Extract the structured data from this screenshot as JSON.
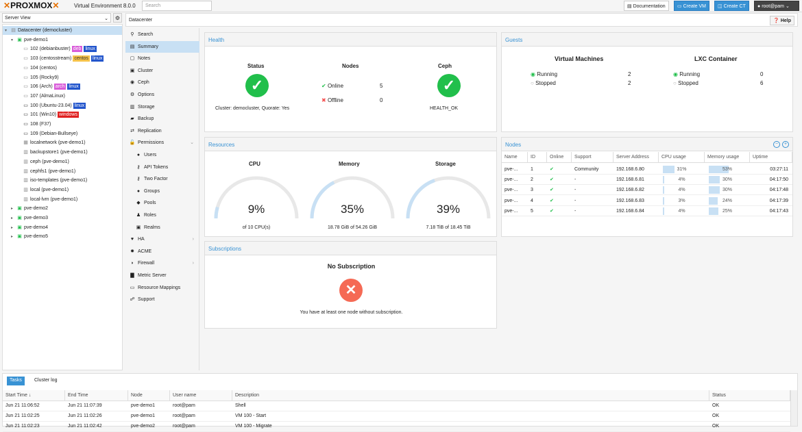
{
  "topbar": {
    "logo": "PROXMOX",
    "version": "Virtual Environment 8.0.0",
    "search_placeholder": "Search",
    "documentation": "Documentation",
    "create_vm": "Create VM",
    "create_ct": "Create CT",
    "user": "root@pam"
  },
  "server_view": "Server View",
  "tree": [
    {
      "label": "Datacenter (democluster)",
      "icon": "datacenter-icon",
      "indent": 0,
      "selected": true
    },
    {
      "label": "pve-demo1",
      "icon": "node-icon",
      "indent": 1,
      "exp": "▾"
    },
    {
      "label": "102 (debianbuster)",
      "icon": "vm-icon",
      "indent": 2,
      "tags": [
        {
          "t": "deb",
          "c": "#d95cd9"
        },
        {
          "t": "linux",
          "c": "#2255cc"
        }
      ]
    },
    {
      "label": "103 (centosstream)",
      "icon": "vm-icon",
      "indent": 2,
      "tags": [
        {
          "t": "centos",
          "c": "#f6c34a",
          "fg": "#333"
        },
        {
          "t": "linux",
          "c": "#2255cc"
        }
      ]
    },
    {
      "label": "104 (centos)",
      "icon": "vm-icon",
      "indent": 2
    },
    {
      "label": "105 (Rocky9)",
      "icon": "vm-icon",
      "indent": 2
    },
    {
      "label": "106 (Arch)",
      "icon": "vm-icon",
      "indent": 2,
      "tags": [
        {
          "t": "arch",
          "c": "#d95cd9"
        },
        {
          "t": "linux",
          "c": "#2255cc"
        }
      ]
    },
    {
      "label": "107 (AlmaLinux)",
      "icon": "vm-icon",
      "indent": 2
    },
    {
      "label": "100 (Ubuntu-23.04)",
      "icon": "monitor-icon",
      "indent": 2,
      "tags": [
        {
          "t": "linux",
          "c": "#2255cc"
        }
      ]
    },
    {
      "label": "101 (Win10)",
      "icon": "monitor-icon",
      "indent": 2,
      "tags": [
        {
          "t": "windows",
          "c": "#e02020"
        }
      ]
    },
    {
      "label": "108 (F37)",
      "icon": "monitor-icon",
      "indent": 2
    },
    {
      "label": "109 (Debian-Bullseye)",
      "icon": "monitor-icon",
      "indent": 2
    },
    {
      "label": "localnetwork (pve-demo1)",
      "icon": "network-icon",
      "indent": 2
    },
    {
      "label": "backupstore1 (pve-demo1)",
      "icon": "storage-icon",
      "indent": 2
    },
    {
      "label": "ceph (pve-demo1)",
      "icon": "storage-icon",
      "indent": 2
    },
    {
      "label": "cephfs1 (pve-demo1)",
      "icon": "storage-icon",
      "indent": 2
    },
    {
      "label": "iso-templates (pve-demo1)",
      "icon": "storage-icon",
      "indent": 2
    },
    {
      "label": "local (pve-demo1)",
      "icon": "storage-icon",
      "indent": 2
    },
    {
      "label": "local-lvm (pve-demo1)",
      "icon": "storage-icon",
      "indent": 2
    },
    {
      "label": "pve-demo2",
      "icon": "node-icon",
      "indent": 1,
      "exp": "▸"
    },
    {
      "label": "pve-demo3",
      "icon": "node-icon",
      "indent": 1,
      "exp": "▸"
    },
    {
      "label": "pve-demo4",
      "icon": "node-icon",
      "indent": 1,
      "exp": "▸"
    },
    {
      "label": "pve-demo5",
      "icon": "node-icon",
      "indent": 1,
      "exp": "▸"
    }
  ],
  "breadcrumb": "Datacenter",
  "help": "Help",
  "menu": [
    {
      "label": "Search",
      "icon": "search-icon",
      "g": "⚲"
    },
    {
      "label": "Summary",
      "icon": "summary-icon",
      "g": "▤",
      "selected": true
    },
    {
      "label": "Notes",
      "icon": "notes-icon",
      "g": "▢"
    },
    {
      "label": "Cluster",
      "icon": "cluster-icon",
      "g": "▣"
    },
    {
      "label": "Ceph",
      "icon": "ceph-icon",
      "g": "◉"
    },
    {
      "label": "Options",
      "icon": "gear-icon",
      "g": "⚙"
    },
    {
      "label": "Storage",
      "icon": "storage-icon",
      "g": "▥"
    },
    {
      "label": "Backup",
      "icon": "backup-icon",
      "g": "▰"
    },
    {
      "label": "Replication",
      "icon": "replication-icon",
      "g": "⇄"
    },
    {
      "label": "Permissions",
      "icon": "unlock-icon",
      "g": "🔓",
      "arrow": "⌄"
    },
    {
      "label": "Users",
      "icon": "user-icon",
      "g": "●",
      "sub": true
    },
    {
      "label": "API Tokens",
      "icon": "key-icon",
      "g": "⚷",
      "sub": true
    },
    {
      "label": "Two Factor",
      "icon": "key-icon",
      "g": "⚷",
      "sub": true
    },
    {
      "label": "Groups",
      "icon": "users-icon",
      "g": "●",
      "sub": true
    },
    {
      "label": "Pools",
      "icon": "tags-icon",
      "g": "◆",
      "sub": true
    },
    {
      "label": "Roles",
      "icon": "male-icon",
      "g": "♟",
      "sub": true
    },
    {
      "label": "Realms",
      "icon": "address-book-icon",
      "g": "▣",
      "sub": true
    },
    {
      "label": "HA",
      "icon": "heartbeat-icon",
      "g": "♥",
      "arrow": "›"
    },
    {
      "label": "ACME",
      "icon": "certificate-icon",
      "g": "✹"
    },
    {
      "label": "Firewall",
      "icon": "shield-icon",
      "g": "◗",
      "arrow": "›"
    },
    {
      "label": "Metric Server",
      "icon": "bar-chart-icon",
      "g": "▇"
    },
    {
      "label": "Resource Mappings",
      "icon": "folder-icon",
      "g": "▭"
    },
    {
      "label": "Support",
      "icon": "comments-icon",
      "g": "☍"
    }
  ],
  "health": {
    "title": "Health",
    "status_h": "Status",
    "nodes_h": "Nodes",
    "ceph_h": "Ceph",
    "online": "Online",
    "online_n": "5",
    "offline": "Offline",
    "offline_n": "0",
    "cluster_text": "Cluster: democluster, Quorate: Yes",
    "ceph_status": "HEALTH_OK"
  },
  "guests": {
    "title": "Guests",
    "vm_h": "Virtual Machines",
    "lxc_h": "LXC Container",
    "running": "Running",
    "stopped": "Stopped",
    "vm_running": "2",
    "vm_stopped": "2",
    "ct_running": "0",
    "ct_stopped": "6"
  },
  "resources": {
    "title": "Resources",
    "cpu_h": "CPU",
    "mem_h": "Memory",
    "storage_h": "Storage",
    "cpu_pct": "9%",
    "cpu_frac": 0.09,
    "cpu_sub": "of 10 CPU(s)",
    "mem_pct": "35%",
    "mem_frac": 0.35,
    "mem_sub": "18.78 GiB of 54.26 GiB",
    "st_pct": "39%",
    "st_frac": 0.39,
    "st_sub": "7.18 TiB of 18.45 TiB"
  },
  "nodes": {
    "title": "Nodes",
    "headers": [
      "Name",
      "ID",
      "Online",
      "Support",
      "Server Address",
      "CPU usage",
      "Memory usage",
      "Uptime"
    ],
    "rows": [
      {
        "name": "pve-...",
        "id": "1",
        "online": "✔",
        "support": "Community",
        "addr": "192.168.6.80",
        "cpu": "31%",
        "cpu_v": 0.31,
        "mem": "53%",
        "mem_v": 0.53,
        "up": "03:27:11"
      },
      {
        "name": "pve-...",
        "id": "2",
        "online": "✔",
        "support": "-",
        "addr": "192.168.6.81",
        "cpu": "4%",
        "cpu_v": 0.04,
        "mem": "30%",
        "mem_v": 0.3,
        "up": "04:17:50"
      },
      {
        "name": "pve-...",
        "id": "3",
        "online": "✔",
        "support": "-",
        "addr": "192.168.6.82",
        "cpu": "4%",
        "cpu_v": 0.04,
        "mem": "30%",
        "mem_v": 0.3,
        "up": "04:17:48"
      },
      {
        "name": "pve-...",
        "id": "4",
        "online": "✔",
        "support": "-",
        "addr": "192.168.6.83",
        "cpu": "3%",
        "cpu_v": 0.03,
        "mem": "24%",
        "mem_v": 0.24,
        "up": "04:17:39"
      },
      {
        "name": "pve-...",
        "id": "5",
        "online": "✔",
        "support": "-",
        "addr": "192.168.6.84",
        "cpu": "4%",
        "cpu_v": 0.04,
        "mem": "25%",
        "mem_v": 0.25,
        "up": "04:17:43"
      }
    ]
  },
  "subscriptions": {
    "title": "Subscriptions",
    "heading": "No Subscription",
    "text": "You have at least one node without subscription."
  },
  "bottom": {
    "tab_tasks": "Tasks",
    "tab_log": "Cluster log",
    "headers": [
      "Start Time ↓",
      "End Time",
      "Node",
      "User name",
      "Description",
      "Status"
    ],
    "rows": [
      [
        "Jun 21 11:06:52",
        "Jun 21 11:07:39",
        "pve-demo1",
        "root@pam",
        "Shell",
        "OK"
      ],
      [
        "Jun 21 11:02:25",
        "Jun 21 11:02:26",
        "pve-demo1",
        "root@pam",
        "VM 100 - Start",
        "OK"
      ],
      [
        "Jun 21 11:02:23",
        "Jun 21 11:02:42",
        "pve-demo2",
        "root@pam",
        "VM 100 - Migrate",
        "OK"
      ]
    ]
  },
  "colors": {
    "accent": "#3892d4",
    "ok": "#21bf4b",
    "error": "#f54f4f",
    "gauge": "#c8e0f4"
  }
}
